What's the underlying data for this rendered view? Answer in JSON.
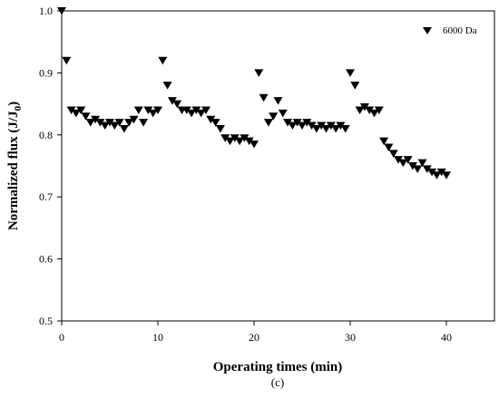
{
  "chart_data": {
    "type": "scatter",
    "xlabel": "Operating times (min)",
    "ylabel_main": "Normalized flux (J/J",
    "ylabel_sub": "0",
    "ylabel_end": ")",
    "panel_label": "(c)",
    "xlim": [
      0,
      45
    ],
    "ylim": [
      0.5,
      1.0
    ],
    "xticks": [
      "0",
      "10",
      "20",
      "30",
      "40"
    ],
    "xtick_values": [
      0,
      10,
      20,
      30,
      40
    ],
    "yticks": [
      "0.5",
      "0.6",
      "0.7",
      "0.8",
      "0.9",
      "1.0"
    ],
    "ytick_values": [
      0.5,
      0.6,
      0.7,
      0.8,
      0.9,
      1.0
    ],
    "legend_position": "top-right",
    "marker": "triangle-down",
    "series": [
      {
        "name": "6000 Da",
        "color": "#000000",
        "x": [
          0.0,
          0.5,
          1.0,
          1.5,
          2.0,
          2.5,
          3.0,
          3.5,
          4.0,
          4.5,
          5.0,
          5.5,
          6.0,
          6.5,
          7.0,
          7.5,
          8.0,
          8.5,
          9.0,
          9.5,
          10.0,
          10.5,
          11.0,
          11.5,
          12.0,
          12.5,
          13.0,
          13.5,
          14.0,
          14.5,
          15.0,
          15.5,
          16.0,
          16.5,
          17.0,
          17.5,
          18.0,
          18.5,
          19.0,
          19.5,
          20.0,
          20.5,
          21.0,
          21.5,
          22.0,
          22.5,
          23.0,
          23.5,
          24.0,
          24.5,
          25.0,
          25.5,
          26.0,
          26.5,
          27.0,
          27.5,
          28.0,
          28.5,
          29.0,
          29.5,
          30.0,
          30.5,
          31.0,
          31.5,
          32.0,
          32.5,
          33.0,
          33.5,
          34.0,
          34.5,
          35.0,
          35.5,
          36.0,
          36.5,
          37.0,
          37.5,
          38.0,
          38.5,
          39.0,
          39.5,
          40.0
        ],
        "y": [
          1.0,
          0.92,
          0.84,
          0.835,
          0.84,
          0.83,
          0.82,
          0.825,
          0.82,
          0.815,
          0.82,
          0.815,
          0.82,
          0.81,
          0.82,
          0.825,
          0.84,
          0.82,
          0.84,
          0.835,
          0.84,
          0.92,
          0.88,
          0.855,
          0.85,
          0.84,
          0.84,
          0.835,
          0.84,
          0.835,
          0.84,
          0.825,
          0.82,
          0.81,
          0.795,
          0.79,
          0.795,
          0.79,
          0.795,
          0.79,
          0.785,
          0.9,
          0.86,
          0.82,
          0.83,
          0.855,
          0.835,
          0.82,
          0.815,
          0.82,
          0.815,
          0.82,
          0.815,
          0.81,
          0.815,
          0.81,
          0.815,
          0.81,
          0.815,
          0.81,
          0.9,
          0.88,
          0.84,
          0.845,
          0.84,
          0.835,
          0.84,
          0.79,
          0.78,
          0.77,
          0.76,
          0.755,
          0.76,
          0.75,
          0.745,
          0.755,
          0.745,
          0.74,
          0.735,
          0.74,
          0.735
        ]
      }
    ]
  }
}
